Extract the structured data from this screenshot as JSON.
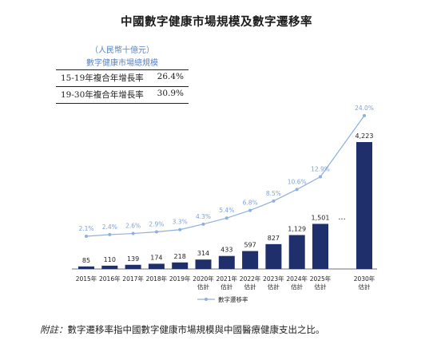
{
  "title": "中國數字健康市場規模及數字遷移率",
  "cagr_table": {
    "unit": "（人民幣十億元）",
    "header": "數字健康市場總規模",
    "rows": [
      {
        "label": "15-19年複合年增長率",
        "value": "26.4%"
      },
      {
        "label": "19-30年複合年增長率",
        "value": "30.9%"
      }
    ]
  },
  "chart_data": {
    "type": "bar",
    "categories": [
      [
        "2015年"
      ],
      [
        "2016年"
      ],
      [
        "2017年"
      ],
      [
        "2018年"
      ],
      [
        "2019年"
      ],
      [
        "2020年",
        "估計"
      ],
      [
        "2021年",
        "估計"
      ],
      [
        "2022年",
        "估計"
      ],
      [
        "2023年",
        "估計"
      ],
      [
        "2024年",
        "估計"
      ],
      [
        "2025年",
        "估計"
      ],
      [
        "2030年",
        "估計"
      ]
    ],
    "series": [
      {
        "values": [
          85,
          110,
          139,
          174,
          218,
          314,
          433,
          597,
          827,
          1129,
          1501,
          4223
        ],
        "labels": [
          "85",
          "110",
          "139",
          "174",
          "218",
          "314",
          "433",
          "597",
          "827",
          "1,129",
          "1,501",
          "4,223"
        ]
      },
      {
        "name": "數字遷移率",
        "type": "line",
        "values": [
          2.1,
          2.4,
          2.6,
          2.9,
          3.3,
          4.3,
          5.4,
          6.8,
          8.5,
          10.6,
          12.9,
          24.0
        ],
        "labels": [
          "2.1%",
          "2.4%",
          "2.6%",
          "2.9%",
          "3.3%",
          "4.3%",
          "5.4%",
          "6.8%",
          "8.5%",
          "10.6%",
          "12.9%",
          "24.0%"
        ]
      }
    ],
    "gap_marker": "...",
    "legend_position": "bottom-center",
    "colors": {
      "bar": "#1f2f6b",
      "line": "#8fb0dc",
      "line_label": "#7fa3d6"
    }
  },
  "note": {
    "label": "附註：",
    "text": "數字遷移率指中國數字健康市場規模與中國醫療健康支出之比。"
  }
}
